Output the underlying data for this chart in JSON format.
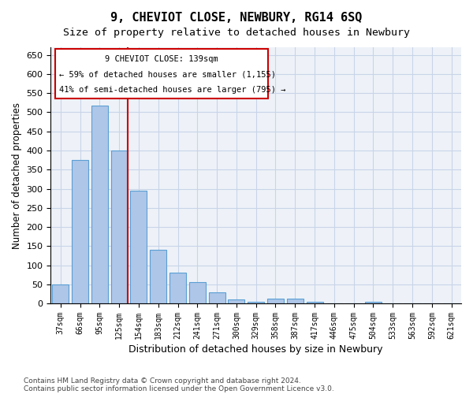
{
  "title": "9, CHEVIOT CLOSE, NEWBURY, RG14 6SQ",
  "subtitle": "Size of property relative to detached houses in Newbury",
  "xlabel": "Distribution of detached houses by size in Newbury",
  "ylabel": "Number of detached properties",
  "categories": [
    "37sqm",
    "66sqm",
    "95sqm",
    "125sqm",
    "154sqm",
    "183sqm",
    "212sqm",
    "241sqm",
    "271sqm",
    "300sqm",
    "329sqm",
    "358sqm",
    "387sqm",
    "417sqm",
    "446sqm",
    "475sqm",
    "504sqm",
    "533sqm",
    "563sqm",
    "592sqm",
    "621sqm"
  ],
  "values": [
    50,
    375,
    518,
    400,
    295,
    140,
    80,
    55,
    30,
    10,
    5,
    12,
    12,
    5,
    0,
    0,
    5,
    0,
    0,
    0,
    0
  ],
  "bar_color": "#aec6e8",
  "bar_edge_color": "#5a9fd4",
  "highlight_bar_index": 3,
  "red_line_x": 3,
  "ylim": [
    0,
    670
  ],
  "yticks": [
    0,
    50,
    100,
    150,
    200,
    250,
    300,
    350,
    400,
    450,
    500,
    550,
    600,
    650
  ],
  "annotation_title": "9 CHEVIOT CLOSE: 139sqm",
  "annotation_line1": "← 59% of detached houses are smaller (1,155)",
  "annotation_line2": "41% of semi-detached houses are larger (795) →",
  "annotation_box_color": "#ffffff",
  "annotation_box_edge": "#cc0000",
  "footer_line1": "Contains HM Land Registry data © Crown copyright and database right 2024.",
  "footer_line2": "Contains public sector information licensed under the Open Government Licence v3.0.",
  "grid_color": "#c8d4e8",
  "background_color": "#eef2f8"
}
